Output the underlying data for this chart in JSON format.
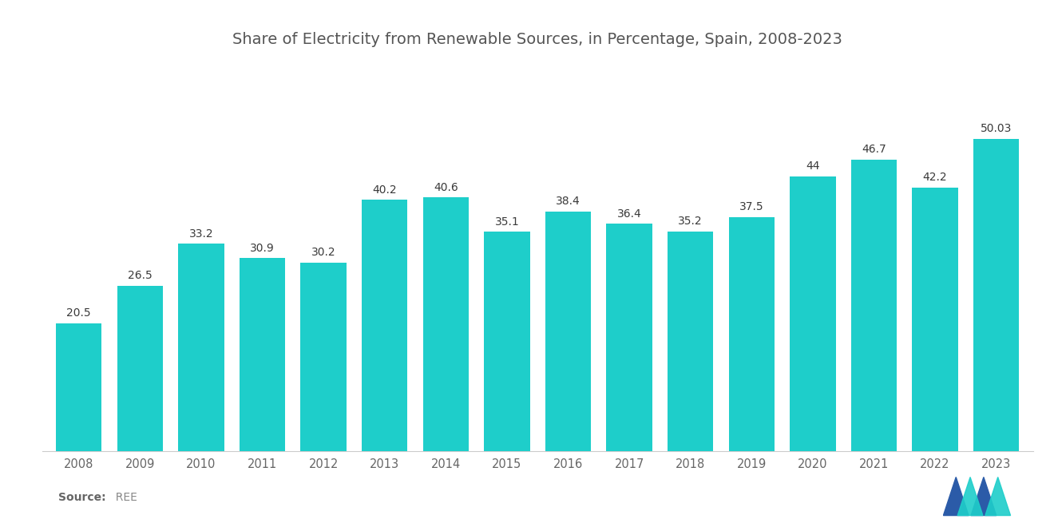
{
  "title": "Share of Electricity from Renewable Sources, in Percentage, Spain, 2008-2023",
  "years": [
    2008,
    2009,
    2010,
    2011,
    2012,
    2013,
    2014,
    2015,
    2016,
    2017,
    2018,
    2019,
    2020,
    2021,
    2022,
    2023
  ],
  "values": [
    20.5,
    26.5,
    33.2,
    30.9,
    30.2,
    40.2,
    40.6,
    35.1,
    38.4,
    36.4,
    35.2,
    37.5,
    44.0,
    46.7,
    42.2,
    50.03
  ],
  "bar_color": "#1ECECA",
  "background_color": "#ffffff",
  "title_fontsize": 14,
  "label_fontsize": 10,
  "tick_fontsize": 10.5,
  "source_bold": "Source:",
  "source_normal": "  REE",
  "ylim": [
    0,
    62
  ],
  "bar_width": 0.75,
  "logo_blue": "#2B5BA8",
  "logo_teal": "#1ECECA",
  "label_color": "#3a3a3a",
  "tick_color": "#666666"
}
